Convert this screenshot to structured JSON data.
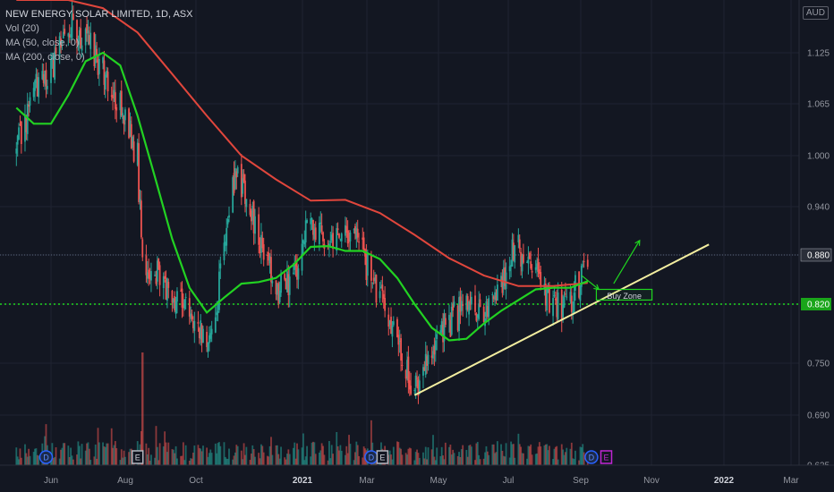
{
  "legend": {
    "title": "NEW ENERGY SOLAR LIMITED, 1D, ASX",
    "vol": "Vol (20)",
    "ma50": "MA (50, close, 0)",
    "ma200": "MA (200, close, 0)"
  },
  "currency": "AUD",
  "chart_data": {
    "type": "candlestick",
    "symbol": "NEW ENERGY SOLAR LIMITED",
    "interval": "1D",
    "exchange": "ASX",
    "y_ticks": [
      "1.125",
      "1.065",
      "1.000",
      "0.940",
      "0.880",
      "0.820",
      "0.750",
      "0.690",
      "0.625"
    ],
    "x_ticks": [
      "Jun",
      "Aug",
      "Oct",
      "2021",
      "Mar",
      "May",
      "Jul",
      "Sep",
      "Nov",
      "2022",
      "Mar"
    ],
    "ylim": [
      0.62,
      1.19
    ],
    "last_price": "0.880",
    "support_level": "0.820",
    "zone_label": "Buy Zone",
    "colors": {
      "up": "#26a69a",
      "down": "#ef5350",
      "ma50": "#22d222",
      "ma200": "#e0463c",
      "trendline": "#f3eea0",
      "support": "#1fd61f",
      "zone": "#1fd61f",
      "arrow": "#1fd61f"
    },
    "ma50": [
      {
        "date": "2020-05-04",
        "value": 1.06
      },
      {
        "date": "2020-05-18",
        "value": 1.04
      },
      {
        "date": "2020-06-01",
        "value": 1.04
      },
      {
        "date": "2020-06-15",
        "value": 1.075
      },
      {
        "date": "2020-06-29",
        "value": 1.115
      },
      {
        "date": "2020-07-13",
        "value": 1.125
      },
      {
        "date": "2020-07-27",
        "value": 1.11
      },
      {
        "date": "2020-08-10",
        "value": 1.05
      },
      {
        "date": "2020-08-24",
        "value": 0.975
      },
      {
        "date": "2020-09-07",
        "value": 0.9
      },
      {
        "date": "2020-09-21",
        "value": 0.84
      },
      {
        "date": "2020-10-05",
        "value": 0.81
      },
      {
        "date": "2020-10-19",
        "value": 0.828
      },
      {
        "date": "2020-11-02",
        "value": 0.845
      },
      {
        "date": "2020-11-16",
        "value": 0.847
      },
      {
        "date": "2020-11-30",
        "value": 0.852
      },
      {
        "date": "2020-12-14",
        "value": 0.868
      },
      {
        "date": "2020-12-28",
        "value": 0.89
      },
      {
        "date": "2021-01-11",
        "value": 0.891
      },
      {
        "date": "2021-01-25",
        "value": 0.885
      },
      {
        "date": "2021-02-08",
        "value": 0.885
      },
      {
        "date": "2021-02-22",
        "value": 0.875
      },
      {
        "date": "2021-03-08",
        "value": 0.852
      },
      {
        "date": "2021-03-22",
        "value": 0.82
      },
      {
        "date": "2021-04-05",
        "value": 0.792
      },
      {
        "date": "2021-04-19",
        "value": 0.777
      },
      {
        "date": "2021-05-03",
        "value": 0.779
      },
      {
        "date": "2021-05-17",
        "value": 0.797
      },
      {
        "date": "2021-05-31",
        "value": 0.812
      },
      {
        "date": "2021-06-14",
        "value": 0.825
      },
      {
        "date": "2021-06-28",
        "value": 0.838
      },
      {
        "date": "2021-07-12",
        "value": 0.84
      },
      {
        "date": "2021-07-26",
        "value": 0.84
      },
      {
        "date": "2021-08-09",
        "value": 0.848
      }
    ],
    "ma200": [
      {
        "date": "2020-05-04",
        "value": 1.2
      },
      {
        "date": "2020-06-15",
        "value": 1.197
      },
      {
        "date": "2020-07-13",
        "value": 1.18
      },
      {
        "date": "2020-08-10",
        "value": 1.15
      },
      {
        "date": "2020-09-07",
        "value": 1.1
      },
      {
        "date": "2020-10-05",
        "value": 1.05
      },
      {
        "date": "2020-11-02",
        "value": 1.0
      },
      {
        "date": "2020-11-30",
        "value": 0.972
      },
      {
        "date": "2020-12-28",
        "value": 0.947
      },
      {
        "date": "2021-01-25",
        "value": 0.948
      },
      {
        "date": "2021-02-22",
        "value": 0.932
      },
      {
        "date": "2021-03-22",
        "value": 0.905
      },
      {
        "date": "2021-04-19",
        "value": 0.876
      },
      {
        "date": "2021-05-17",
        "value": 0.855
      },
      {
        "date": "2021-06-14",
        "value": 0.842
      },
      {
        "date": "2021-07-12",
        "value": 0.842
      },
      {
        "date": "2021-08-09",
        "value": 0.846
      }
    ],
    "price_path": [
      {
        "date": "2020-05-04",
        "value": 1.005
      },
      {
        "date": "2020-05-18",
        "value": 1.08
      },
      {
        "date": "2020-06-01",
        "value": 1.1
      },
      {
        "date": "2020-06-15",
        "value": 1.165
      },
      {
        "date": "2020-06-29",
        "value": 1.14
      },
      {
        "date": "2020-07-13",
        "value": 1.11
      },
      {
        "date": "2020-07-27",
        "value": 1.06
      },
      {
        "date": "2020-08-10",
        "value": 1.0
      },
      {
        "date": "2020-08-14",
        "value": 0.86
      },
      {
        "date": "2020-08-24",
        "value": 0.86
      },
      {
        "date": "2020-09-07",
        "value": 0.835
      },
      {
        "date": "2020-09-21",
        "value": 0.815
      },
      {
        "date": "2020-10-05",
        "value": 0.775
      },
      {
        "date": "2020-10-12",
        "value": 0.8
      },
      {
        "date": "2020-10-19",
        "value": 0.9
      },
      {
        "date": "2020-10-26",
        "value": 0.975
      },
      {
        "date": "2020-11-02",
        "value": 0.97
      },
      {
        "date": "2020-11-16",
        "value": 0.905
      },
      {
        "date": "2020-11-30",
        "value": 0.835
      },
      {
        "date": "2020-12-14",
        "value": 0.85
      },
      {
        "date": "2020-12-28",
        "value": 0.925
      },
      {
        "date": "2021-01-11",
        "value": 0.9
      },
      {
        "date": "2021-01-25",
        "value": 0.92
      },
      {
        "date": "2021-02-08",
        "value": 0.88
      },
      {
        "date": "2021-02-22",
        "value": 0.83
      },
      {
        "date": "2021-03-08",
        "value": 0.77
      },
      {
        "date": "2021-03-22",
        "value": 0.72
      },
      {
        "date": "2021-04-05",
        "value": 0.77
      },
      {
        "date": "2021-04-19",
        "value": 0.8
      },
      {
        "date": "2021-05-03",
        "value": 0.815
      },
      {
        "date": "2021-05-17",
        "value": 0.81
      },
      {
        "date": "2021-05-31",
        "value": 0.835
      },
      {
        "date": "2021-06-07",
        "value": 0.875
      },
      {
        "date": "2021-06-14",
        "value": 0.89
      },
      {
        "date": "2021-06-28",
        "value": 0.855
      },
      {
        "date": "2021-07-12",
        "value": 0.82
      },
      {
        "date": "2021-07-26",
        "value": 0.82
      },
      {
        "date": "2021-08-09",
        "value": 0.875
      }
    ],
    "annotations": {
      "trendline": [
        {
          "date": "2021-03-22",
          "value": 0.713
        },
        {
          "date": "2021-11-15",
          "value": 0.893
        }
      ],
      "buy_zone": {
        "date_start": "2021-08-16",
        "date_end": "2021-09-30",
        "high": 0.838,
        "low": 0.825
      },
      "arrow_down": [
        {
          "date": "2021-08-04",
          "value": 0.855
        },
        {
          "date": "2021-08-18",
          "value": 0.838
        }
      ],
      "arrow_up": [
        {
          "date": "2021-08-30",
          "value": 0.845
        },
        {
          "date": "2021-09-20",
          "value": 0.898
        }
      ]
    },
    "events": [
      {
        "date": "2020-05-28",
        "type": "D"
      },
      {
        "date": "2020-08-10",
        "type": "E"
      },
      {
        "date": "2021-02-15",
        "type": "D"
      },
      {
        "date": "2021-02-24",
        "type": "E"
      },
      {
        "date": "2021-08-12",
        "type": "D"
      },
      {
        "date": "2021-08-24",
        "type": "E"
      }
    ]
  }
}
